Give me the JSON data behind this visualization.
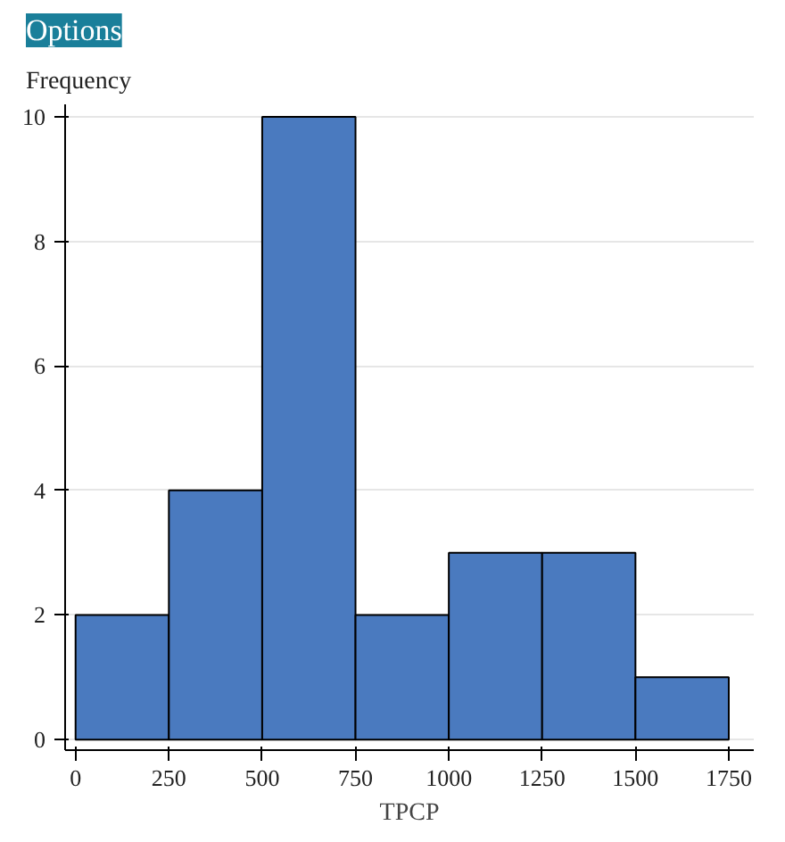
{
  "chart_data": {
    "type": "histogram",
    "xlabel": "TPCP",
    "ylabel": "Frequency",
    "annotations": [
      "Options"
    ],
    "bins": [
      0,
      250,
      500,
      750,
      1000,
      1250,
      1500,
      1750
    ],
    "values": [
      2,
      4,
      10,
      2,
      3,
      3,
      1
    ],
    "color": "#4a7abf",
    "xlim": [
      -28,
      1817
    ],
    "xticks": [
      0,
      250,
      500,
      750,
      1000,
      1250,
      1500,
      1750
    ],
    "ylim": [
      -0.17,
      10.2
    ],
    "yticks": [
      0,
      2,
      4,
      6,
      8,
      10
    ],
    "grid": "y"
  }
}
